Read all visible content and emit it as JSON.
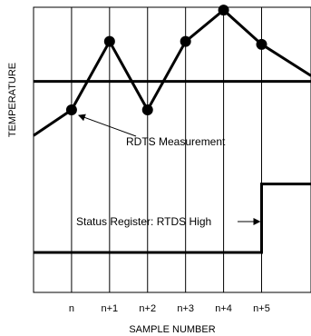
{
  "chart_data": {
    "type": "line",
    "title": "",
    "xlabel": "SAMPLE NUMBER",
    "ylabel": "TEMPERATURE",
    "x_ticks": [
      "n",
      "n+1",
      "n+2",
      "n+3",
      "n+4",
      "n+5"
    ],
    "x_range": [
      -1,
      6.3
    ],
    "y_range": [
      0,
      10
    ],
    "grid": "vertical",
    "series": [
      {
        "name": "",
        "x": [
          -1,
          0,
          1,
          2,
          3,
          4,
          5,
          6.3
        ],
        "y": [
          5.5,
          6.4,
          8.8,
          6.4,
          8.8,
          9.9,
          8.7,
          7.6
        ],
        "markers_at": [
          0,
          1,
          2,
          3,
          4,
          5
        ],
        "color": "#000000"
      }
    ],
    "threshold": {
      "y": 7.4
    },
    "status_register": {
      "low": 1.4,
      "high": 3.8,
      "switch_x": 5,
      "x_start": -1,
      "x_end": 6.3
    },
    "annotations": [
      {
        "text": "RDTS Measurement",
        "points_to": {
          "x": 0,
          "y": 6.4
        }
      },
      {
        "text": "Status Register: RTDS High",
        "points_to": {
          "x": 5,
          "y": 2.6
        }
      }
    ]
  }
}
